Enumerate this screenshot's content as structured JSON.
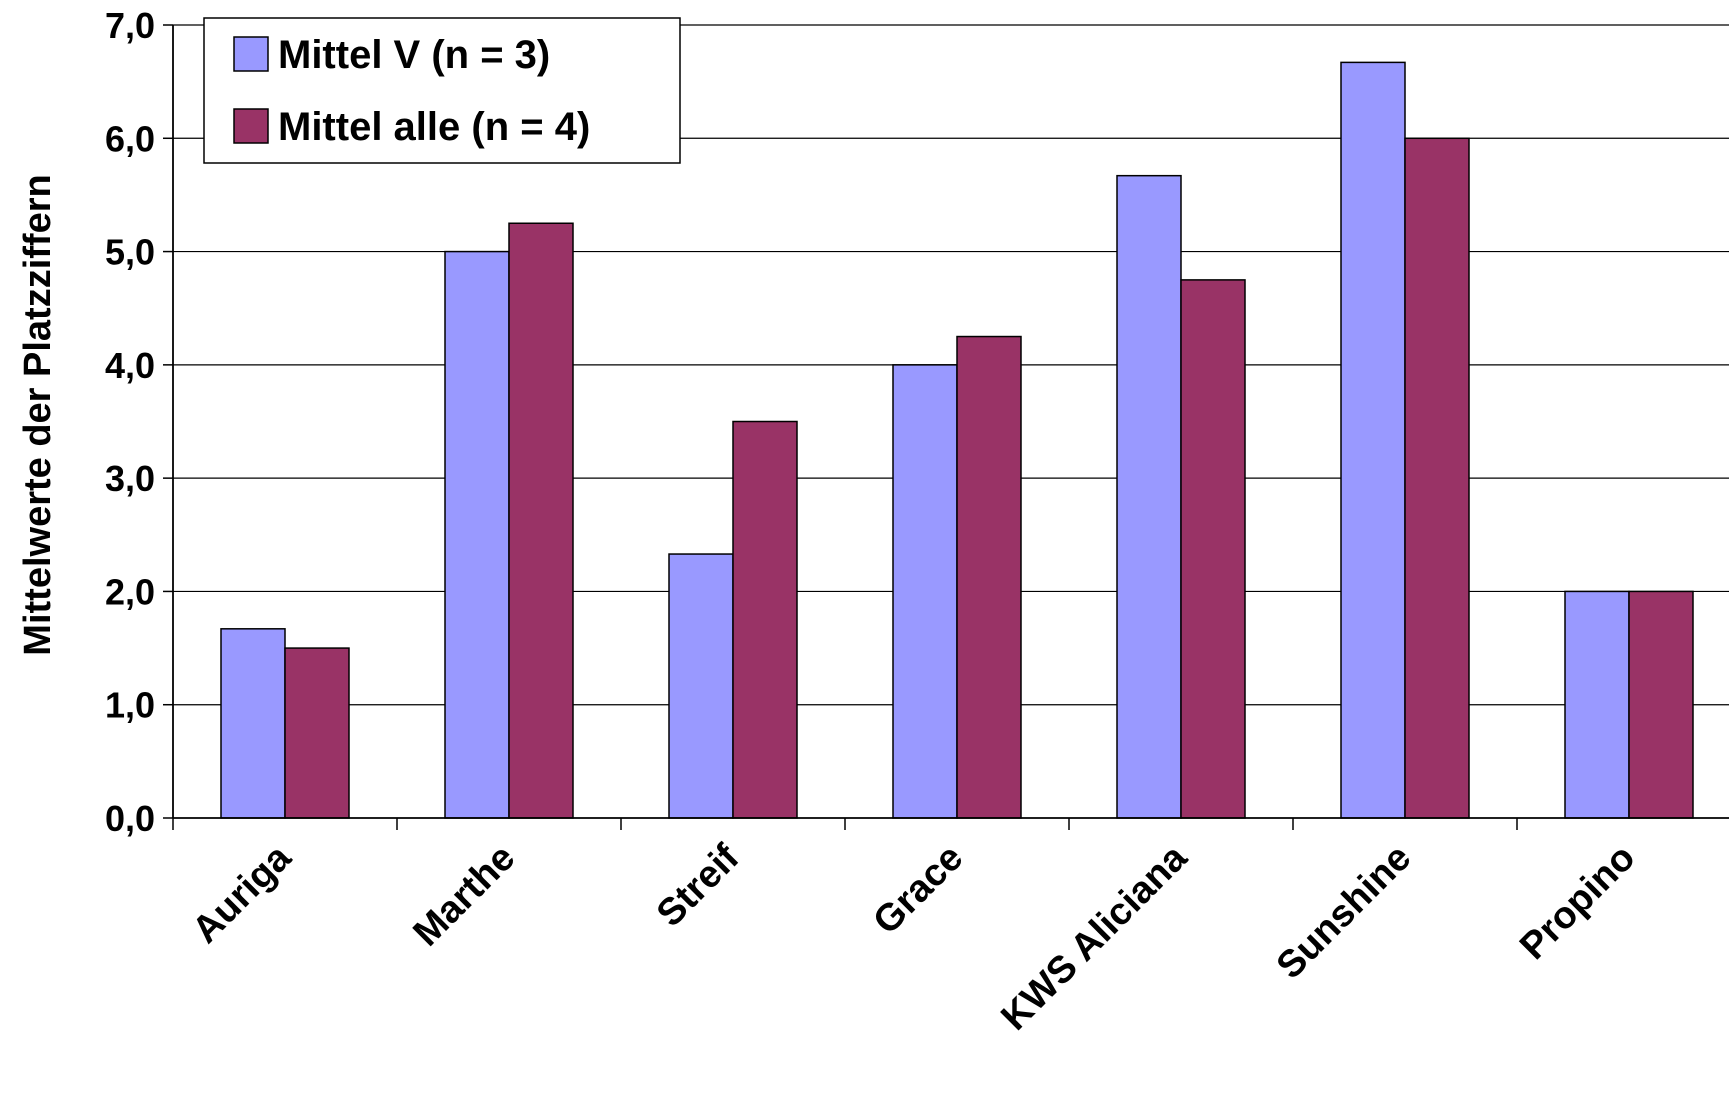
{
  "chart_data": {
    "type": "bar",
    "ylabel": "Mittelwerte der Platzziffern",
    "xlabel": "",
    "ylim": [
      0,
      7
    ],
    "yticks": [
      "0,0",
      "1,0",
      "2,0",
      "3,0",
      "4,0",
      "5,0",
      "6,0",
      "7,0"
    ],
    "grid": "horizontal",
    "legend_position": "top-left",
    "categories": [
      "Auriga",
      "Marthe",
      "Streif",
      "Grace",
      "KWS Aliciana",
      "Sunshine",
      "Propino"
    ],
    "series": [
      {
        "name": "Mittel V (n = 3)",
        "color": "#9999ff",
        "values": [
          1.67,
          5.0,
          2.33,
          4.0,
          5.67,
          6.67,
          2.0
        ]
      },
      {
        "name": "Mittel alle (n = 4)",
        "color": "#993366",
        "values": [
          1.5,
          5.25,
          3.5,
          4.25,
          4.75,
          6.0,
          2.0
        ]
      }
    ]
  }
}
